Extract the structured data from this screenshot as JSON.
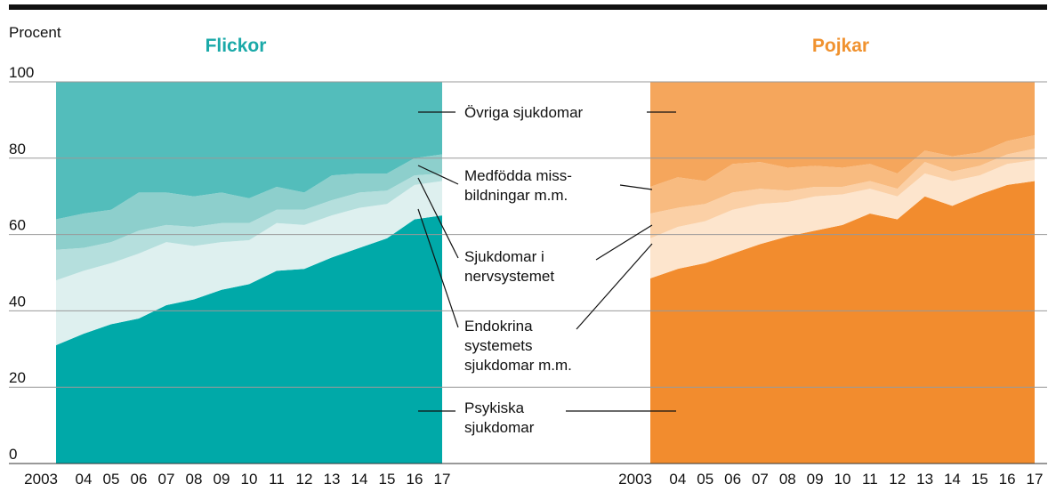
{
  "chart_data": [
    {
      "type": "stacked-area",
      "title": "Flickor",
      "ylabel": "Procent",
      "title_color": "#1aa9a8",
      "categories": [
        "2003",
        "04",
        "05",
        "06",
        "07",
        "08",
        "09",
        "10",
        "11",
        "12",
        "13",
        "14",
        "15",
        "16",
        "17"
      ],
      "ylim": [
        0,
        100
      ],
      "yticks": [
        0,
        20,
        40,
        60,
        80,
        100
      ],
      "grid": true,
      "series": [
        {
          "name": "Psykiska\nsjukdomar",
          "color": "#00a9a8",
          "values": [
            31,
            34,
            36.5,
            38,
            41.5,
            43,
            45.5,
            47,
            50.5,
            51,
            54,
            56.5,
            59,
            64,
            65
          ]
        },
        {
          "name": "Endokrina\nsystemets\nsjukdomar m.m.",
          "color": "#def0ef",
          "values": [
            17,
            16.5,
            16,
            17,
            16.5,
            14,
            12.5,
            11.5,
            12.5,
            11.5,
            11,
            10.5,
            9,
            9,
            9
          ]
        },
        {
          "name": "Sjukdomar i\nnervsystemet",
          "color": "#b5dfdd",
          "values": [
            8,
            6,
            5.5,
            6,
            4.5,
            5,
            5,
            4.5,
            3.5,
            4,
            4,
            4,
            3.5,
            2.5,
            2
          ]
        },
        {
          "name": "Medfödda miss-\nbildningar m.m.",
          "color": "#8dcfcc",
          "values": [
            8,
            9,
            8.5,
            10,
            8.5,
            8,
            8,
            6.5,
            6,
            4.5,
            6.5,
            5,
            4.5,
            4.5,
            5
          ]
        },
        {
          "name": "Övriga sjukdomar",
          "color": "#53bdbb",
          "values": [
            36,
            34.5,
            33.5,
            29,
            29,
            30,
            29,
            30.5,
            27.5,
            29,
            24.5,
            24,
            24,
            20,
            19
          ]
        }
      ]
    },
    {
      "type": "stacked-area",
      "title": "Pojkar",
      "title_color": "#f0922f",
      "categories": [
        "2003",
        "04",
        "05",
        "06",
        "07",
        "08",
        "09",
        "10",
        "11",
        "12",
        "13",
        "14",
        "15",
        "16",
        "17"
      ],
      "ylim": [
        0,
        100
      ],
      "series": [
        {
          "color": "#f28c2e",
          "values": [
            48.5,
            51,
            52.5,
            55,
            57.5,
            59.5,
            61,
            62.5,
            65.5,
            64,
            70,
            67.5,
            70.5,
            73,
            74
          ]
        },
        {
          "color": "#fde5cd",
          "values": [
            10.5,
            11,
            11,
            11.5,
            10.5,
            9,
            9,
            8,
            6.5,
            6,
            6,
            6.5,
            5,
            5.5,
            5.5
          ]
        },
        {
          "color": "#fbd0a6",
          "values": [
            6.5,
            5,
            4.5,
            4.5,
            4,
            3,
            2.5,
            2,
            2,
            2,
            3,
            2.5,
            2.5,
            2.5,
            3
          ]
        },
        {
          "color": "#f8bb80",
          "values": [
            7,
            8,
            6,
            7.5,
            7,
            6,
            5.5,
            5,
            4.5,
            4,
            3,
            4,
            3.5,
            3.5,
            3.5
          ]
        },
        {
          "color": "#f5a65c",
          "values": [
            27.5,
            25,
            26,
            21.5,
            21,
            22.5,
            22,
            22.5,
            21.5,
            24,
            18,
            19.5,
            18.5,
            15.5,
            14
          ]
        }
      ]
    }
  ]
}
